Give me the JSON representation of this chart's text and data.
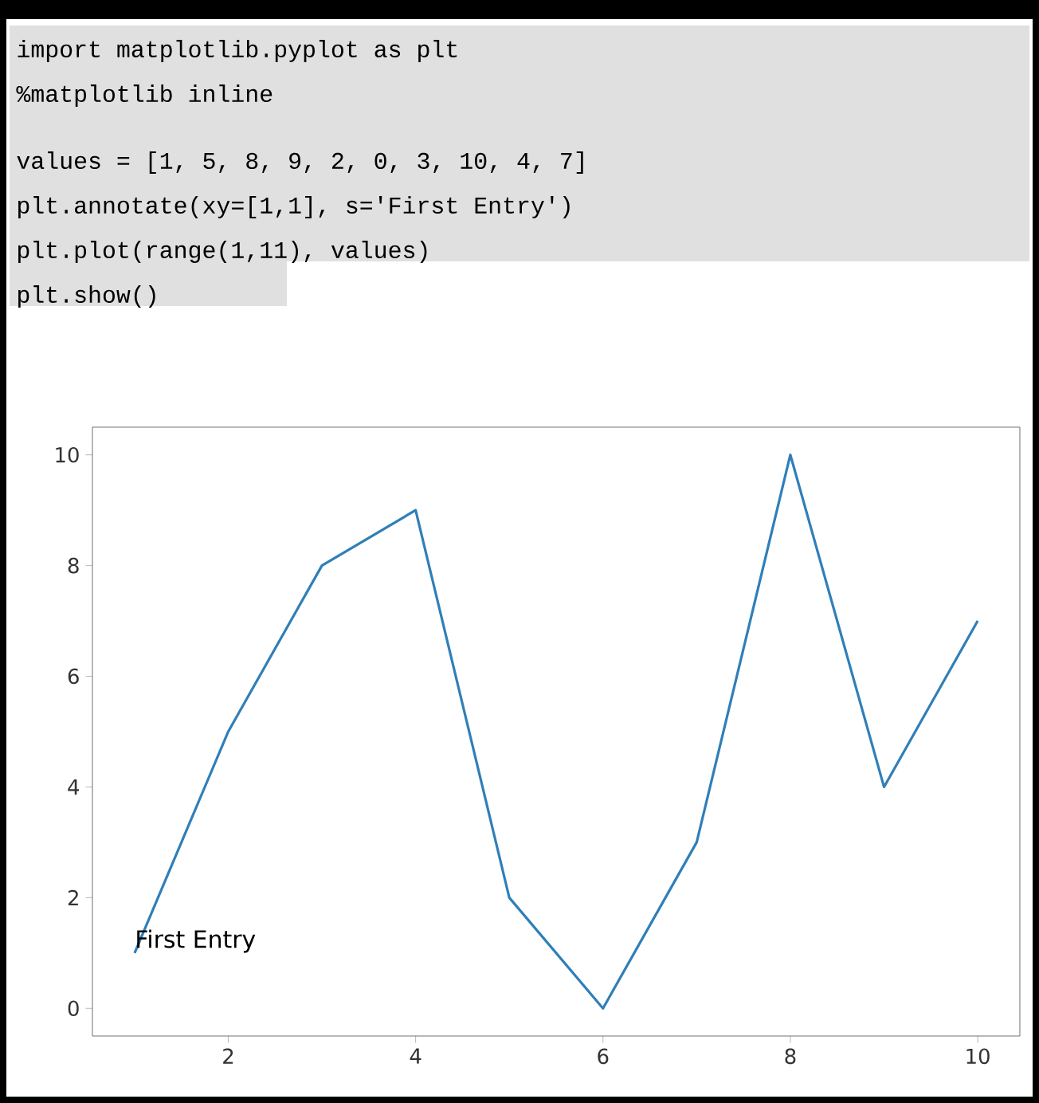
{
  "chart_data": {
    "type": "line",
    "x": [
      1,
      2,
      3,
      4,
      5,
      6,
      7,
      8,
      9,
      10
    ],
    "series": [
      {
        "color": "#2f7fb8",
        "values": [
          1,
          5,
          8,
          9,
          2,
          0,
          3,
          10,
          4,
          7
        ]
      }
    ],
    "xlim": [
      0.55,
      10.45
    ],
    "ylim": [
      -0.5,
      10.5
    ],
    "xticks": [
      2,
      4,
      6,
      8,
      10
    ],
    "yticks": [
      0,
      2,
      4,
      6,
      8,
      10
    ],
    "grid": false,
    "marker": "none",
    "line_style": "solid",
    "annotations": [
      "import matplotlib.pyplot as plt",
      "%matplotlib inline",
      "values = [1, 5, 8, 9, 2, 0, 3, 10, 4, 7]",
      "plt.annotate(xy=[1,1], s='First Entry')",
      "plt.plot(range(1,11), values)",
      "plt.show()",
      {
        "text": "First Entry",
        "x": 1,
        "y": 1
      }
    ]
  }
}
